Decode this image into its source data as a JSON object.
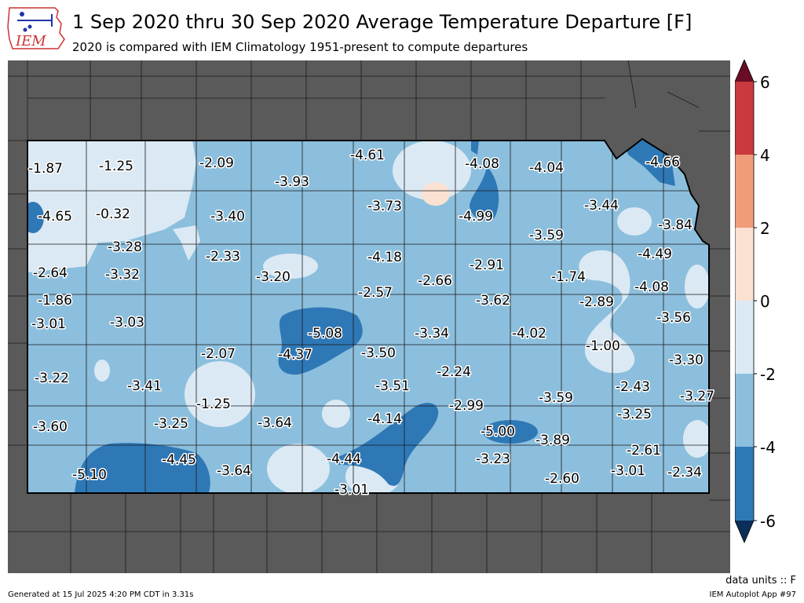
{
  "header": {
    "logo_text": "IEM",
    "title": "1 Sep 2020 thru 30 Sep 2020 Average Temperature Departure [F]",
    "subtitle": "2020 is compared with IEM Climatology 1951-present to compute departures"
  },
  "footer": {
    "units": "data units :: F",
    "generated": "Generated at 15 Jul 2025 4:20 PM CDT in 3.31s",
    "app": "IEM Autoplot App #97"
  },
  "colors": {
    "background": "#5a5a5a",
    "level_-6_-4": "#2f78b6",
    "level_-4_-2": "#8cbfdd",
    "level_-2_0": "#dbe9f4",
    "level_0_2": "#fbe1d1",
    "level_2_4": "#f09b7a",
    "level_4_6": "#c83a3d",
    "above_6": "#6a0d24",
    "below_-6": "#0b2f58"
  },
  "colorbar": {
    "ticks": [
      "6",
      "4",
      "2",
      "0",
      "-2",
      "-4",
      "-6"
    ]
  },
  "map_data": {
    "region": "Iowa",
    "variable": "Average Temperature Departure",
    "units": "F",
    "levels": [
      -6,
      -4,
      -2,
      0,
      2,
      4,
      6
    ],
    "stations": [
      {
        "value": "-1.87"
      },
      {
        "value": "-1.25"
      },
      {
        "value": "-2.09"
      },
      {
        "value": "-3.93"
      },
      {
        "value": "-4.61"
      },
      {
        "value": "-4.08"
      },
      {
        "value": "-4.04"
      },
      {
        "value": "-4.66"
      },
      {
        "value": "-4.65"
      },
      {
        "value": "-0.32"
      },
      {
        "value": "-3.40"
      },
      {
        "value": "-3.73"
      },
      {
        "value": "-4.99"
      },
      {
        "value": "-3.44"
      },
      {
        "value": "-3.84"
      },
      {
        "value": "-3.28"
      },
      {
        "value": "-2.33"
      },
      {
        "value": "-4.18"
      },
      {
        "value": "-3.59"
      },
      {
        "value": "-4.49"
      },
      {
        "value": "-2.64"
      },
      {
        "value": "-3.32"
      },
      {
        "value": "-3.20"
      },
      {
        "value": "-2.91"
      },
      {
        "value": "-2.66"
      },
      {
        "value": "-1.74"
      },
      {
        "value": "-4.08"
      },
      {
        "value": "-1.86"
      },
      {
        "value": "-2.57"
      },
      {
        "value": "-3.62"
      },
      {
        "value": "-2.89"
      },
      {
        "value": "-3.01"
      },
      {
        "value": "-3.03"
      },
      {
        "value": "-5.08"
      },
      {
        "value": "-3.34"
      },
      {
        "value": "-4.02"
      },
      {
        "value": "-3.56"
      },
      {
        "value": "-4.37"
      },
      {
        "value": "-2.07"
      },
      {
        "value": "-3.50"
      },
      {
        "value": "-1.00"
      },
      {
        "value": "-3.22"
      },
      {
        "value": "-3.30"
      },
      {
        "value": "-3.41"
      },
      {
        "value": "-2.24"
      },
      {
        "value": "-3.51"
      },
      {
        "value": "-2.43"
      },
      {
        "value": "-3.27"
      },
      {
        "value": "-1.25"
      },
      {
        "value": "-2.99"
      },
      {
        "value": "-3.59"
      },
      {
        "value": "-3.60"
      },
      {
        "value": "-3.25"
      },
      {
        "value": "-3.64"
      },
      {
        "value": "-4.14"
      },
      {
        "value": "-3.25"
      },
      {
        "value": "-5.00"
      },
      {
        "value": "-3.89"
      },
      {
        "value": "-2.61"
      },
      {
        "value": "-4.45"
      },
      {
        "value": "-4.44"
      },
      {
        "value": "-3.23"
      },
      {
        "value": "-3.01"
      },
      {
        "value": "-5.10"
      },
      {
        "value": "-3.64"
      },
      {
        "value": "-2.60"
      },
      {
        "value": "-2.34"
      },
      {
        "value": "-3.01"
      }
    ]
  }
}
